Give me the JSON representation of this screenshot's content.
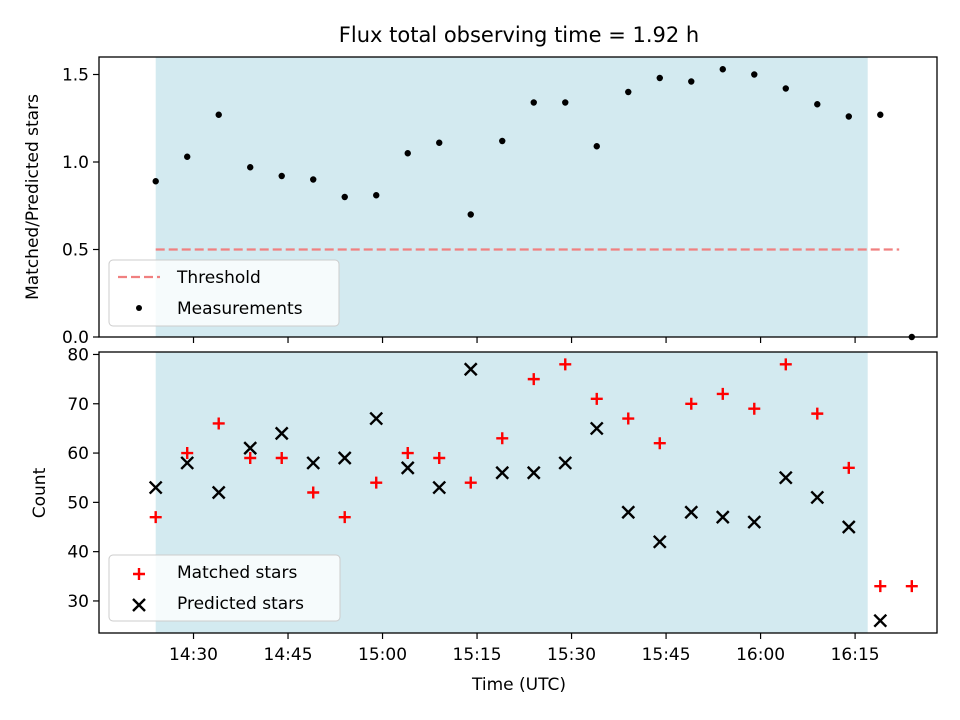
{
  "figure": {
    "title": "Flux total observing time = 1.92 h",
    "xlabel": "Time (UTC)"
  },
  "colors": {
    "shade": "#d3eaf0",
    "threshold": "#f08080",
    "measurement": "#000000",
    "matched": "#ff0000",
    "predicted": "#000000"
  },
  "chart_data": [
    {
      "type": "scatter",
      "ylabel": "Matched/Predicted stars",
      "ylim": [
        0,
        1.6
      ],
      "yticks": [
        0.0,
        0.5,
        1.0,
        1.5
      ],
      "ytick_labels": [
        "0.0",
        "0.5",
        "1.0",
        "1.5"
      ],
      "shaded_span": [
        "14:24",
        "16:17"
      ],
      "legend": "lower-left",
      "threshold": {
        "name": "Threshold",
        "value": 0.5,
        "x_range": [
          "14:24",
          "16:22"
        ]
      },
      "series": [
        {
          "name": "Measurements",
          "x": [
            "14:24",
            "14:29",
            "14:34",
            "14:39",
            "14:44",
            "14:49",
            "14:54",
            "14:59",
            "15:04",
            "15:09",
            "15:14",
            "15:19",
            "15:24",
            "15:29",
            "15:34",
            "15:39",
            "15:44",
            "15:49",
            "15:54",
            "15:59",
            "16:04",
            "16:09",
            "16:14",
            "16:19",
            "16:24"
          ],
          "y": [
            0.89,
            1.03,
            1.27,
            0.97,
            0.92,
            0.9,
            0.8,
            0.81,
            1.05,
            1.11,
            0.7,
            1.12,
            1.34,
            1.34,
            1.09,
            1.4,
            1.48,
            1.46,
            1.53,
            1.5,
            1.42,
            1.33,
            1.26,
            1.27,
            0.0
          ]
        }
      ]
    },
    {
      "type": "scatter",
      "ylabel": "Count",
      "ylim": [
        23.5,
        80.5
      ],
      "yticks": [
        30,
        40,
        50,
        60,
        70,
        80
      ],
      "ytick_labels": [
        "30",
        "40",
        "50",
        "60",
        "70",
        "80"
      ],
      "xlim": [
        "14:15",
        "16:28"
      ],
      "xticks": [
        "14:30",
        "14:45",
        "15:00",
        "15:15",
        "15:30",
        "15:45",
        "16:00",
        "16:15"
      ],
      "xtick_labels": [
        "14:30",
        "14:45",
        "15:00",
        "15:15",
        "15:30",
        "15:45",
        "16:00",
        "16:15"
      ],
      "shaded_span": [
        "14:24",
        "16:17"
      ],
      "legend": "lower-left",
      "series": [
        {
          "name": "Matched stars",
          "marker": "+",
          "x": [
            "14:24",
            "14:29",
            "14:34",
            "14:39",
            "14:44",
            "14:49",
            "14:54",
            "14:59",
            "15:04",
            "15:09",
            "15:14",
            "15:19",
            "15:24",
            "15:29",
            "15:34",
            "15:39",
            "15:44",
            "15:49",
            "15:54",
            "15:59",
            "16:04",
            "16:09",
            "16:14",
            "16:19",
            "16:24"
          ],
          "y": [
            47,
            60,
            66,
            59,
            59,
            52,
            47,
            54,
            60,
            59,
            54,
            63,
            75,
            78,
            71,
            67,
            62,
            70,
            72,
            69,
            78,
            68,
            57,
            33,
            33
          ]
        },
        {
          "name": "Predicted stars",
          "marker": "x",
          "x": [
            "14:24",
            "14:29",
            "14:34",
            "14:39",
            "14:44",
            "14:49",
            "14:54",
            "14:59",
            "15:04",
            "15:09",
            "15:14",
            "15:19",
            "15:24",
            "15:29",
            "15:34",
            "15:39",
            "15:44",
            "15:49",
            "15:54",
            "15:59",
            "16:04",
            "16:09",
            "16:14",
            "16:19"
          ],
          "y": [
            53,
            58,
            52,
            61,
            64,
            58,
            59,
            67,
            57,
            53,
            77,
            56,
            56,
            58,
            65,
            48,
            42,
            48,
            47,
            46,
            55,
            51,
            45,
            26
          ]
        }
      ]
    }
  ]
}
